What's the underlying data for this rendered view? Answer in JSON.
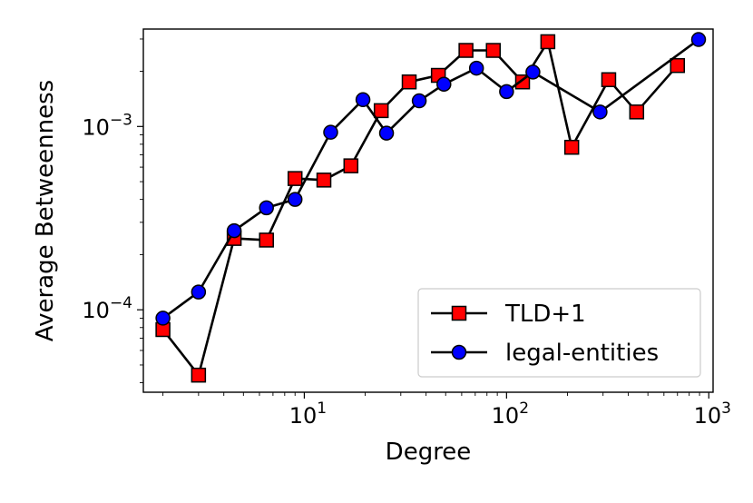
{
  "chart_data": {
    "type": "line",
    "xlabel": "Degree",
    "ylabel": "Average Betweenness",
    "xscale": "log",
    "yscale": "log",
    "xlim": [
      1.6,
      1050
    ],
    "ylim": [
      3.55e-05,
      0.0034
    ],
    "x_ticks": [
      {
        "value": 10,
        "base": "10",
        "exp": "1"
      },
      {
        "value": 100,
        "base": "10",
        "exp": "2"
      },
      {
        "value": 1000,
        "base": "10",
        "exp": "3"
      }
    ],
    "y_ticks": [
      {
        "value": 0.0001,
        "base": "10",
        "exp": "−4"
      },
      {
        "value": 0.001,
        "base": "10",
        "exp": "−3"
      }
    ],
    "grid": false,
    "legend_position": "lower-right",
    "series": [
      {
        "name": "TLD+1",
        "color": "#ff0000",
        "marker": "square",
        "points": [
          {
            "x": 2,
            "y": 7.8e-05
          },
          {
            "x": 3,
            "y": 4.4e-05
          },
          {
            "x": 4.5,
            "y": 0.000245
          },
          {
            "x": 6.5,
            "y": 0.00024
          },
          {
            "x": 9,
            "y": 0.00052
          },
          {
            "x": 12.5,
            "y": 0.00051
          },
          {
            "x": 17,
            "y": 0.00061
          },
          {
            "x": 24,
            "y": 0.00122
          },
          {
            "x": 33,
            "y": 0.00175
          },
          {
            "x": 46,
            "y": 0.0019
          },
          {
            "x": 63,
            "y": 0.0026
          },
          {
            "x": 86,
            "y": 0.0026
          },
          {
            "x": 120,
            "y": 0.00175
          },
          {
            "x": 160,
            "y": 0.0029
          },
          {
            "x": 210,
            "y": 0.00077
          },
          {
            "x": 320,
            "y": 0.0018
          },
          {
            "x": 440,
            "y": 0.0012
          },
          {
            "x": 700,
            "y": 0.00215
          }
        ]
      },
      {
        "name": "legal-entities",
        "color": "#0000ff",
        "marker": "circle",
        "points": [
          {
            "x": 2,
            "y": 9e-05
          },
          {
            "x": 3,
            "y": 0.000125
          },
          {
            "x": 4.5,
            "y": 0.00027
          },
          {
            "x": 6.5,
            "y": 0.00036
          },
          {
            "x": 9,
            "y": 0.0004
          },
          {
            "x": 13.5,
            "y": 0.00093
          },
          {
            "x": 19.5,
            "y": 0.0014
          },
          {
            "x": 25.5,
            "y": 0.00092
          },
          {
            "x": 37,
            "y": 0.00138
          },
          {
            "x": 49,
            "y": 0.0017
          },
          {
            "x": 71,
            "y": 0.00208
          },
          {
            "x": 100,
            "y": 0.00155
          },
          {
            "x": 135,
            "y": 0.00198
          },
          {
            "x": 290,
            "y": 0.0012
          },
          {
            "x": 890,
            "y": 0.00298
          }
        ]
      }
    ]
  }
}
